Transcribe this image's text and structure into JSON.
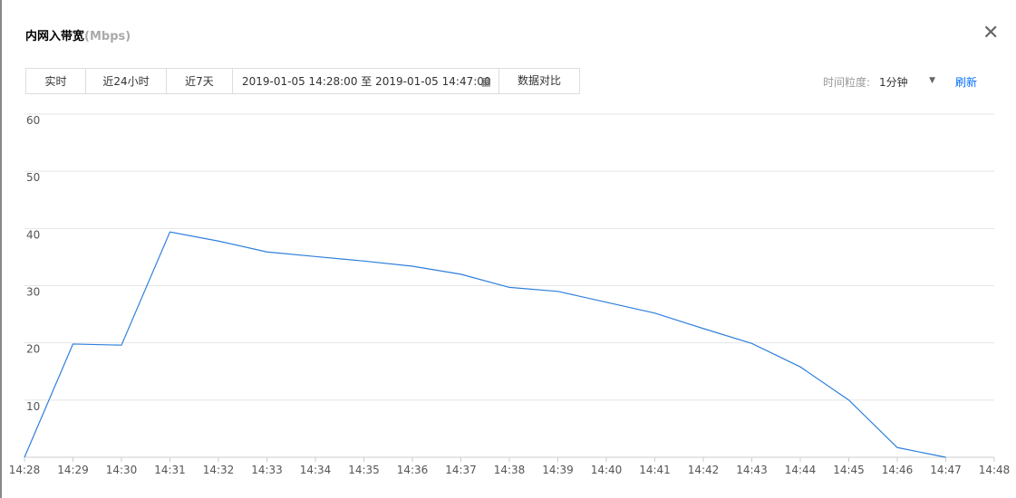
{
  "header": {
    "title": "内网入带宽",
    "unit": "(Mbps)"
  },
  "toolbar": {
    "tabs": [
      "实时",
      "近24小时",
      "近7天"
    ],
    "date_range": "2019-01-05 14:28:00 至 2019-01-05 14:47:00",
    "compare": "数据对比",
    "granularity_label": "时间粒度:",
    "granularity": "1分钟",
    "refresh": "刷新"
  },
  "chart_data": {
    "type": "line",
    "categories": [
      "14:28",
      "14:29",
      "14:30",
      "14:31",
      "14:32",
      "14:33",
      "14:34",
      "14:35",
      "14:36",
      "14:37",
      "14:38",
      "14:39",
      "14:40",
      "14:41",
      "14:42",
      "14:43",
      "14:44",
      "14:45",
      "14:46",
      "14:47",
      "14:48"
    ],
    "series": [
      {
        "name": "内网入带宽",
        "color": "#2f7fdb",
        "values": [
          0,
          19.8,
          19.6,
          39.4,
          37.8,
          35.9,
          35.1,
          34.3,
          33.4,
          32.0,
          29.7,
          29.0,
          27.1,
          25.2,
          22.5,
          19.9,
          15.8,
          10.0,
          1.7,
          0,
          null
        ]
      }
    ],
    "ylim": [
      0,
      60
    ],
    "yticks": [
      10,
      20,
      30,
      40,
      50,
      60
    ],
    "grid": true
  }
}
